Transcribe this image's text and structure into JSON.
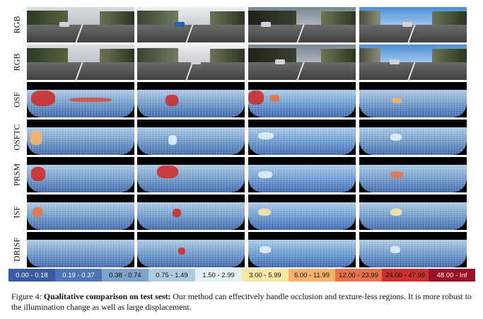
{
  "rows": [
    {
      "label": "RGB"
    },
    {
      "label": "RGB"
    },
    {
      "label": "OSF"
    },
    {
      "label": "OSFTC"
    },
    {
      "label": "PRSM"
    },
    {
      "label": "ISF"
    },
    {
      "label": "DRISF"
    }
  ],
  "legend": [
    {
      "label": "0.00 - 0.18",
      "color": "#3b5aa6",
      "text_color": "#ffffff"
    },
    {
      "label": "0.19 - 0.37",
      "color": "#4e74b8",
      "text_color": "#ffffff"
    },
    {
      "label": "0.38 - 0.74",
      "color": "#7da2cc",
      "text_color": "#111111"
    },
    {
      "label": "0.75 - 1.49",
      "color": "#aecbe2",
      "text_color": "#111111"
    },
    {
      "label": "1.50 - 2.99",
      "color": "#e3eef5",
      "text_color": "#111111"
    },
    {
      "label": "3.00 - 5.99",
      "color": "#f8e7a1",
      "text_color": "#111111"
    },
    {
      "label": "6.00 - 11.99",
      "color": "#f5b36a",
      "text_color": "#111111"
    },
    {
      "label": "12.00 - 23.99",
      "color": "#e8734a",
      "text_color": "#111111"
    },
    {
      "label": "24.00 - 47.99",
      "color": "#cc2f2c",
      "text_color": "#111111"
    },
    {
      "label": "48.00 - Inf",
      "color": "#9c1027",
      "text_color": "#ffffff"
    }
  ],
  "caption": {
    "figure": "Figure 4:",
    "title": "Qualitative comparison on test sest:",
    "text": "Our method can effecitvely handle occlusion and texture-less regions. It is more robust to the illumination change as well as large displacement."
  }
}
